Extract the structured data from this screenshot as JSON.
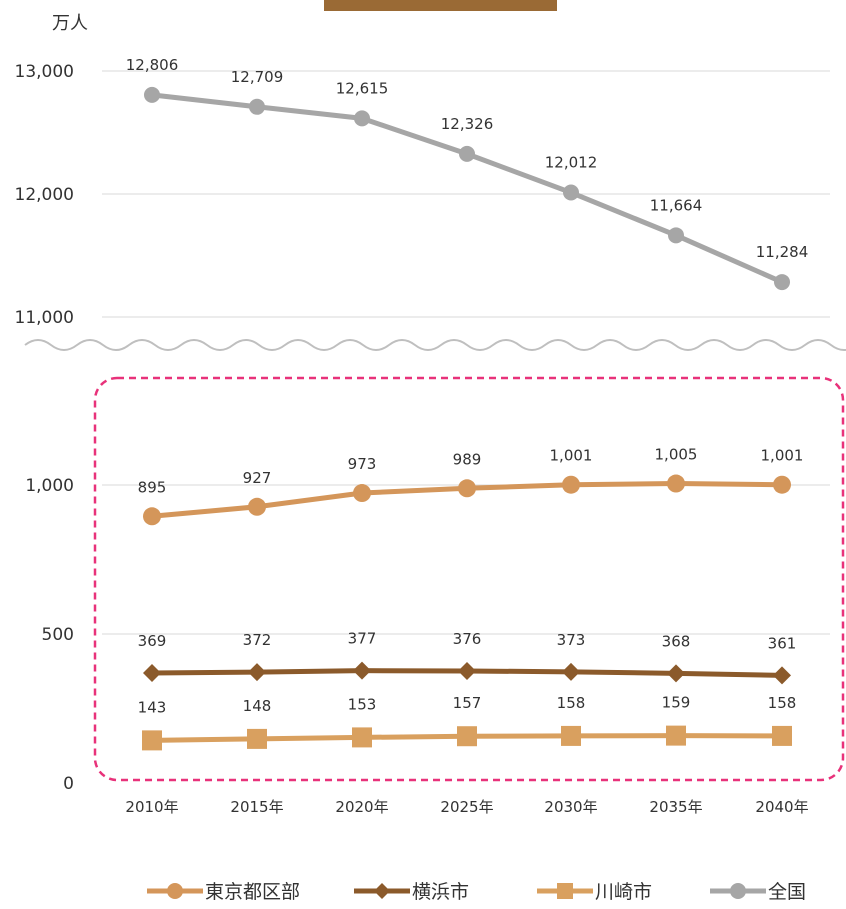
{
  "unit_label": "万人",
  "chart_data": {
    "type": "line",
    "categories": [
      "2010年",
      "2015年",
      "2020年",
      "2025年",
      "2030年",
      "2035年",
      "2040年"
    ],
    "upper_panel": {
      "yticks": [
        "13,000",
        "12,000",
        "11,000"
      ],
      "ylim": [
        11000,
        13000
      ],
      "series": [
        {
          "name": "全国",
          "color": "#a6a6a6",
          "marker": "circle",
          "values": [
            12806,
            12709,
            12615,
            12326,
            12012,
            11664,
            11284
          ],
          "labels": [
            "12,806",
            "12,709",
            "12,615",
            "12,326",
            "12,012",
            "11,664",
            "11,284"
          ]
        }
      ]
    },
    "lower_panel": {
      "yticks": [
        "1,000",
        "500",
        "0"
      ],
      "ylim": [
        0,
        1000
      ],
      "series": [
        {
          "name": "東京都区部",
          "color": "#d4965a",
          "marker": "circle",
          "values": [
            895,
            927,
            973,
            989,
            1001,
            1005,
            1001
          ],
          "labels": [
            "895",
            "927",
            "973",
            "989",
            "1,001",
            "1,005",
            "1,001"
          ]
        },
        {
          "name": "横浜市",
          "color": "#8b5a2b",
          "marker": "diamond",
          "values": [
            369,
            372,
            377,
            376,
            373,
            368,
            361
          ],
          "labels": [
            "369",
            "372",
            "377",
            "376",
            "373",
            "368",
            "361"
          ]
        },
        {
          "name": "川崎市",
          "color": "#d9a05f",
          "marker": "square",
          "values": [
            143,
            148,
            153,
            157,
            158,
            159,
            158
          ],
          "labels": [
            "143",
            "148",
            "153",
            "157",
            "158",
            "159",
            "158"
          ]
        }
      ]
    },
    "legend_position": "bottom",
    "axis_break": true,
    "highlight_box_color": "#e8327a",
    "grid": true
  }
}
